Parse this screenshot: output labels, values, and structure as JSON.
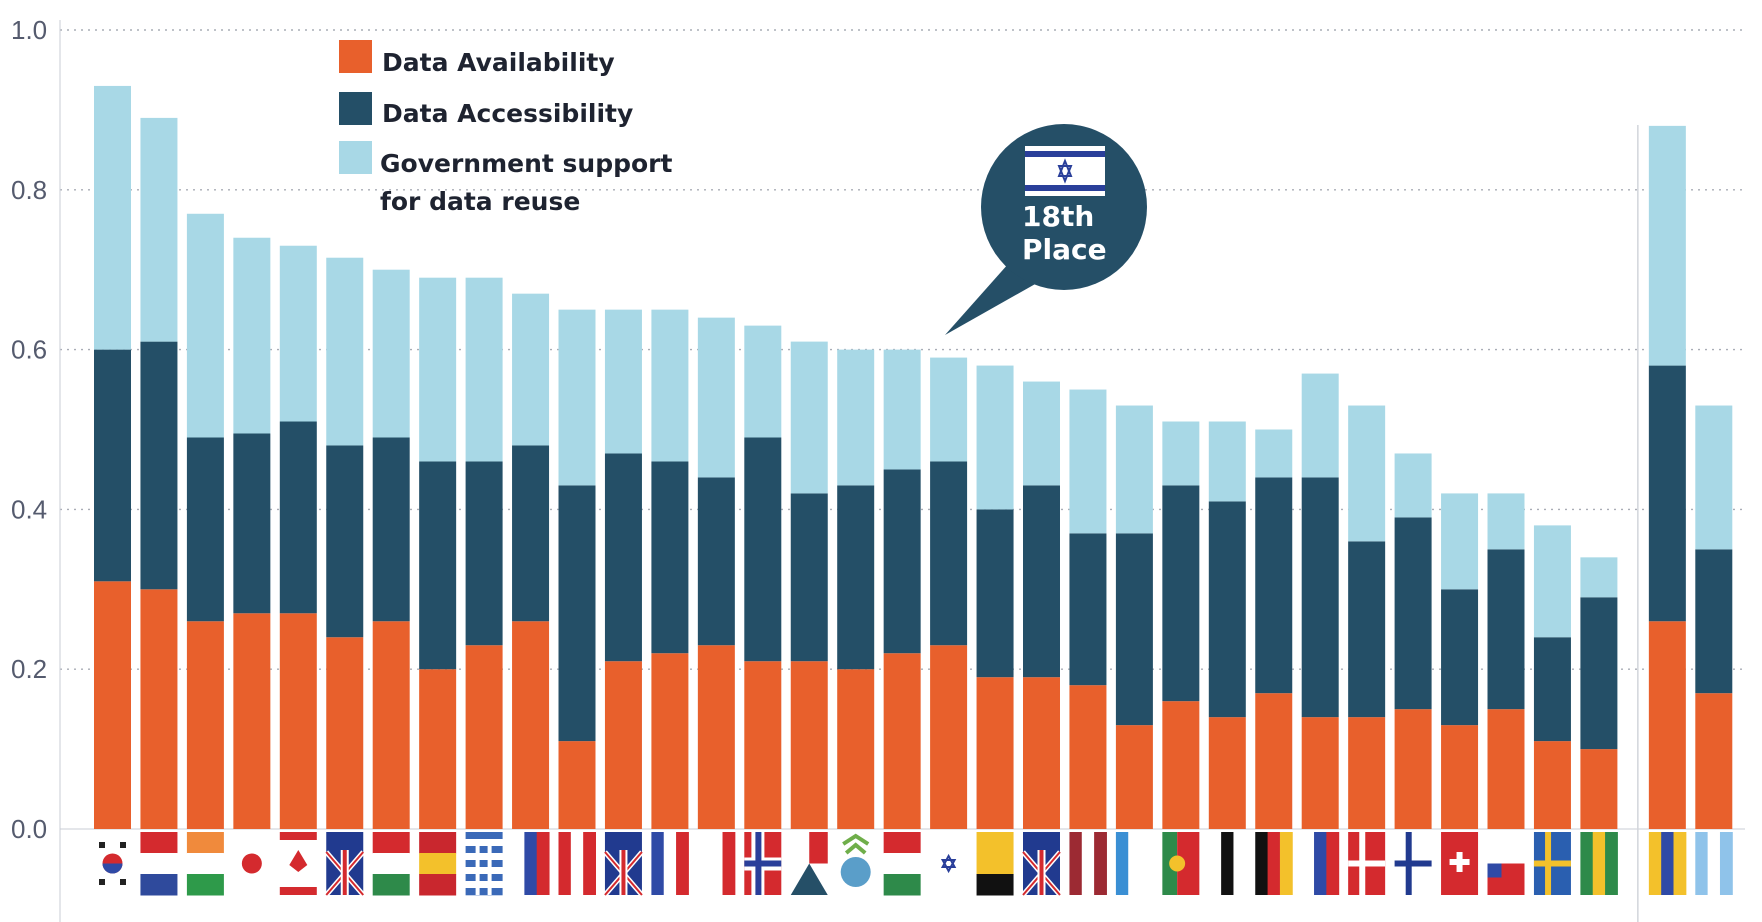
{
  "chart_data": {
    "type": "bar",
    "stacked": true,
    "title": "",
    "xlabel": "",
    "ylabel": "",
    "ylim": [
      0,
      1.0
    ],
    "yticks": [
      "0.0",
      "0.2",
      "0.4",
      "0.6",
      "0.8",
      "1.0"
    ],
    "grid": true,
    "legend_position": "top-left",
    "categories": [
      "south-korea",
      "netherlands",
      "ireland",
      "japan",
      "canada",
      "australia",
      "mexico",
      "spain",
      "greece",
      "slovenia",
      "austria",
      "new-zealand",
      "france",
      "italy",
      "norway",
      "czech-republic",
      "oecd",
      "hungary",
      "israel",
      "belgium",
      "united-kingdom",
      "latvia",
      "estonia",
      "portugal",
      "luxembourg",
      "germany",
      "iceland",
      "denmark",
      "finland",
      "switzerland",
      "chile",
      "sweden",
      "lithuania",
      "colombia",
      "argentina"
    ],
    "group_gap_after_index": 32,
    "series": [
      {
        "name": "Data Availability",
        "color": "#e8602c",
        "values": [
          0.31,
          0.3,
          0.26,
          0.27,
          0.27,
          0.24,
          0.26,
          0.2,
          0.23,
          0.26,
          0.11,
          0.21,
          0.22,
          0.23,
          0.21,
          0.21,
          0.2,
          0.22,
          0.23,
          0.19,
          0.19,
          0.18,
          0.13,
          0.16,
          0.14,
          0.17,
          0.14,
          0.14,
          0.15,
          0.13,
          0.15,
          0.11,
          0.1,
          0.26,
          0.17
        ]
      },
      {
        "name": "Data Accessibility",
        "color": "#244f67",
        "values": [
          0.29,
          0.31,
          0.23,
          0.225,
          0.24,
          0.24,
          0.23,
          0.26,
          0.23,
          0.22,
          0.32,
          0.26,
          0.24,
          0.21,
          0.28,
          0.21,
          0.23,
          0.23,
          0.23,
          0.21,
          0.24,
          0.19,
          0.24,
          0.27,
          0.27,
          0.27,
          0.3,
          0.22,
          0.24,
          0.17,
          0.2,
          0.13,
          0.19,
          0.32,
          0.18
        ]
      },
      {
        "name": "Government support for data reuse",
        "color": "#a8d8e6",
        "values": [
          0.33,
          0.28,
          0.28,
          0.245,
          0.22,
          0.235,
          0.21,
          0.23,
          0.23,
          0.19,
          0.22,
          0.18,
          0.19,
          0.2,
          0.14,
          0.19,
          0.17,
          0.15,
          0.13,
          0.18,
          0.13,
          0.18,
          0.16,
          0.08,
          0.1,
          0.06,
          0.13,
          0.17,
          0.08,
          0.12,
          0.07,
          0.14,
          0.05,
          0.3,
          0.18
        ]
      }
    ],
    "legend": [
      "Data Availability",
      "Data Accessibility",
      "Government support",
      "for data reuse"
    ],
    "annotation": {
      "category": "israel",
      "line1": "18th",
      "line2": "Place",
      "color": "#254f67"
    }
  }
}
